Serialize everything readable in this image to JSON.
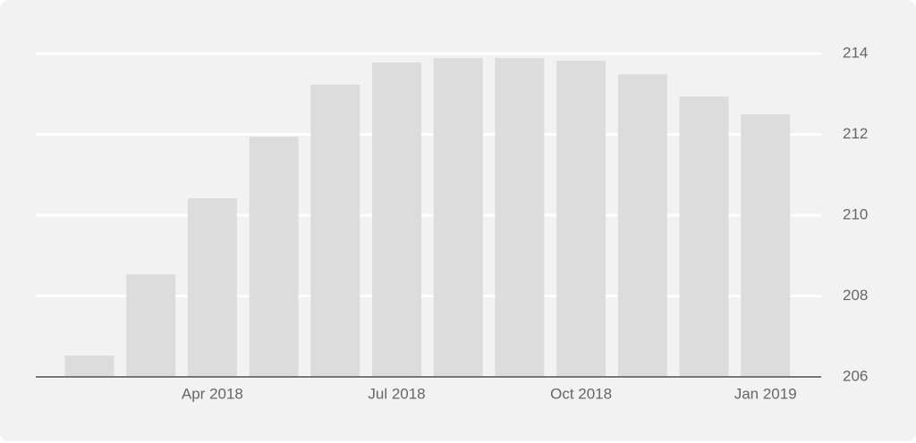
{
  "chart_data": {
    "type": "bar",
    "categories": [
      null,
      null,
      "Apr 2018",
      null,
      null,
      "Jul 2018",
      null,
      null,
      "Oct 2018",
      null,
      null,
      "Jan 2019"
    ],
    "values": [
      206.53,
      208.54,
      210.42,
      211.94,
      213.23,
      213.78,
      213.89,
      213.89,
      213.82,
      213.49,
      212.94,
      212.5
    ],
    "color": "#dcdcdc",
    "ylim": [
      206,
      214
    ],
    "yticks": [
      206,
      208,
      210,
      212,
      214
    ],
    "grid": true
  }
}
